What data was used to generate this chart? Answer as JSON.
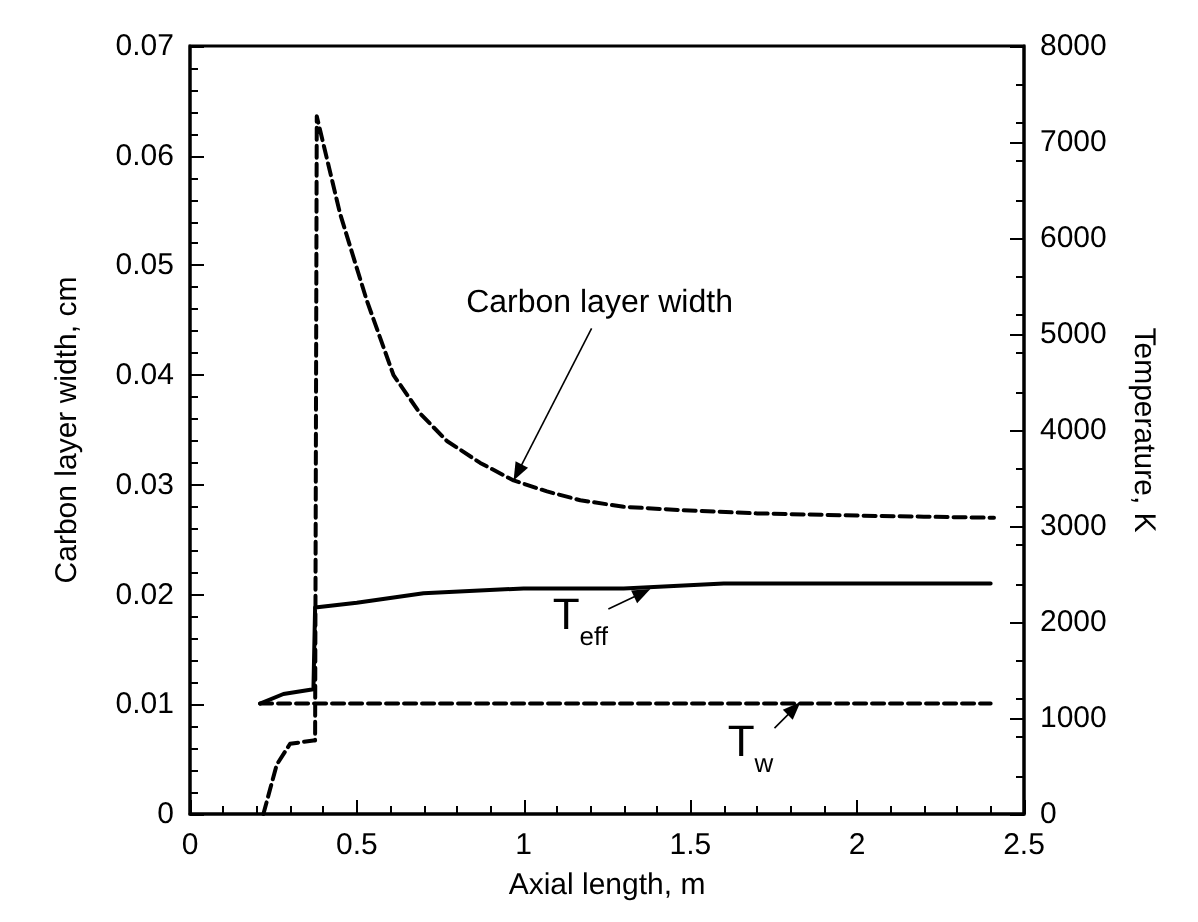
{
  "chart_data": {
    "type": "line",
    "xlabel": "Axial length, m",
    "ylabel": "Carbon layer width, cm",
    "y2label": "Temperature, K",
    "xlim": [
      0,
      2.5
    ],
    "xticks": [
      0,
      0.5,
      1,
      1.5,
      2,
      2.5
    ],
    "ylim": [
      0,
      0.07
    ],
    "yticks": [
      0,
      0.01,
      0.02,
      0.03,
      0.04,
      0.05,
      0.06,
      0.07
    ],
    "y2lim": [
      0,
      8000
    ],
    "y2ticks": [
      0,
      1000,
      2000,
      3000,
      4000,
      5000,
      6000,
      7000,
      8000
    ],
    "grid": false,
    "marker": "none",
    "series": [
      {
        "color": "#000000",
        "line_style": "dashed",
        "x": [
          0.22,
          0.26,
          0.3,
          0.37,
          0.375,
          0.38,
          0.45,
          0.53,
          0.61,
          0.69,
          0.77,
          0.87,
          0.97,
          1.07,
          1.17,
          1.3,
          1.47,
          1.7,
          2.0,
          2.2,
          2.41
        ],
        "values": [
          0,
          0.0045,
          0.0064,
          0.0067,
          0.0067,
          0.0636,
          0.0547,
          0.0468,
          0.04,
          0.0365,
          0.034,
          0.032,
          0.0304,
          0.0294,
          0.0286,
          0.028,
          0.0277,
          0.0274,
          0.0272,
          0.0271,
          0.027
        ]
      },
      {
        "color": "#000000",
        "line_style": "solid",
        "axis": "y2",
        "x": [
          0.21,
          0.28,
          0.37,
          0.375,
          0.5,
          0.7,
          1.0,
          1.3,
          1.6,
          2.0,
          2.4
        ],
        "values": [
          1150,
          1250,
          1300,
          2150,
          2200,
          2300,
          2350,
          2350,
          2400,
          2400,
          2400
        ]
      },
      {
        "color": "#000000",
        "line_style": "dashed",
        "axis": "y2",
        "x": [
          0.21,
          2.4
        ],
        "values": [
          1150,
          1150
        ]
      }
    ],
    "annotations": [
      {
        "text": "Carbon layer width",
        "x": 0.97,
        "y": 0.0304
      },
      {
        "text": "T$_{eff}$",
        "x": 1.38,
        "y": 0.0205
      },
      {
        "text": "T$_{w}$",
        "x": 1.83,
        "y": 0.0102
      }
    ]
  }
}
